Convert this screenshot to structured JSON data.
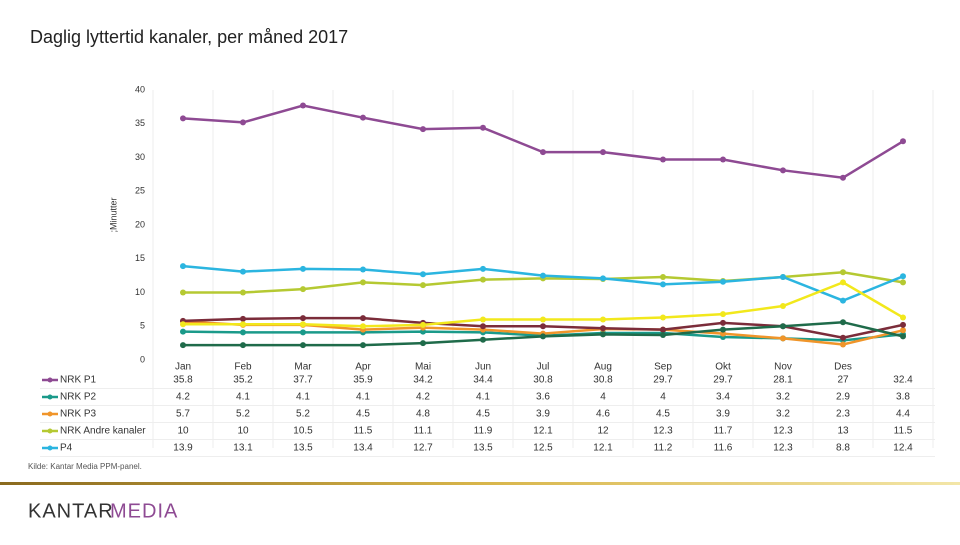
{
  "chart_data": {
    "type": "line",
    "title": "Daglig lyttertid kanaler, per måned 2017",
    "y_label": ";Minutter",
    "source": "Kilde: Kantar Media PPM-panel.",
    "logo": {
      "left": "KANTAR",
      "right": "MEDIA"
    },
    "categories": [
      "Jan",
      "Feb",
      "Mar",
      "Apr",
      "Mai",
      "Jun",
      "Jul",
      "Aug",
      "Sep",
      "Okt",
      "Nov",
      "Des",
      null
    ],
    "ylim": [
      0,
      40
    ],
    "yticks": [
      0,
      5,
      10,
      15,
      20,
      25,
      30,
      35,
      40
    ],
    "series": [
      {
        "name": "NRK P1",
        "color": "#8e4a93",
        "values": [
          35.8,
          35.2,
          37.7,
          35.9,
          34.2,
          34.4,
          30.8,
          30.8,
          29.7,
          29.7,
          28.1,
          27,
          32.4
        ]
      },
      {
        "name": "NRK P2",
        "color": "#1a9a8a",
        "values": [
          4.2,
          4.1,
          4.1,
          4.1,
          4.2,
          4.1,
          3.6,
          4,
          4,
          3.4,
          3.2,
          2.9,
          3.8
        ]
      },
      {
        "name": "NRK P3",
        "color": "#f0952a",
        "values": [
          5.7,
          5.2,
          5.2,
          4.5,
          4.8,
          4.5,
          3.9,
          4.6,
          4.5,
          3.9,
          3.2,
          2.3,
          4.4
        ]
      },
      {
        "name": "NRK Andre kanaler",
        "color": "#b5c932",
        "values": [
          10,
          10,
          10.5,
          11.5,
          11.1,
          11.9,
          12.1,
          12,
          12.3,
          11.7,
          12.3,
          13,
          11.5
        ]
      },
      {
        "name": "P4",
        "color": "#2bb5e0",
        "values": [
          13.9,
          13.1,
          13.5,
          13.4,
          12.7,
          13.5,
          12.5,
          12.1,
          11.2,
          11.6,
          12.3,
          8.8,
          12.4
        ]
      },
      {
        "color": "#7b2c3a",
        "values": [
          5.8,
          6.1,
          6.2,
          6.2,
          5.5,
          5,
          5,
          4.7,
          4.5,
          5.5,
          5,
          3.3,
          5.2
        ]
      },
      {
        "color": "#1f6b4a",
        "values": [
          2.2,
          2.2,
          2.2,
          2.2,
          2.5,
          3,
          3.5,
          3.8,
          3.7,
          4.5,
          5,
          5.6,
          3.5
        ]
      },
      {
        "color": "#f2e81c",
        "values": [
          5.3,
          5.3,
          5.3,
          5,
          5.2,
          6,
          6,
          6,
          6.3,
          6.8,
          8,
          11.5,
          6.3
        ]
      }
    ]
  }
}
